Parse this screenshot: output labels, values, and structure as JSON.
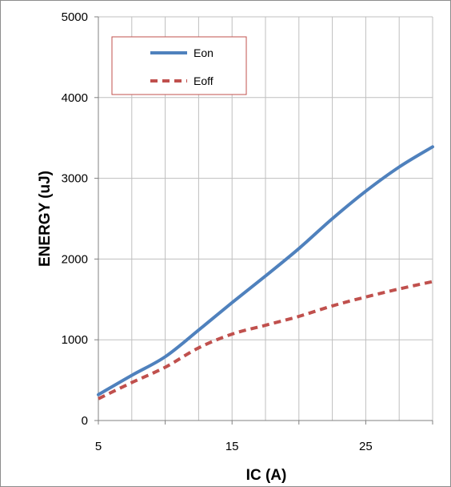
{
  "chart_data": {
    "type": "line",
    "title": "",
    "xlabel": "IC  (A)",
    "ylabel": "ENERGY  (uJ)",
    "xlim": [
      5,
      30
    ],
    "ylim": [
      0,
      5000
    ],
    "x_ticks": [
      5,
      15,
      25
    ],
    "y_ticks": [
      0,
      1000,
      2000,
      3000,
      4000,
      5000
    ],
    "grid": true,
    "legend_position": "top-left",
    "x": [
      5,
      7.5,
      10,
      12.5,
      15,
      17.5,
      20,
      22.5,
      25,
      27.5,
      30
    ],
    "series": [
      {
        "name": "Eon",
        "color": "#4f81bd",
        "style": "solid",
        "values": [
          320,
          560,
          790,
          1120,
          1460,
          1790,
          2130,
          2500,
          2840,
          3140,
          3390
        ]
      },
      {
        "name": "Eoff",
        "color": "#c0504d",
        "style": "dashed",
        "values": [
          270,
          470,
          660,
          900,
          1070,
          1180,
          1290,
          1420,
          1530,
          1630,
          1720
        ]
      }
    ]
  }
}
